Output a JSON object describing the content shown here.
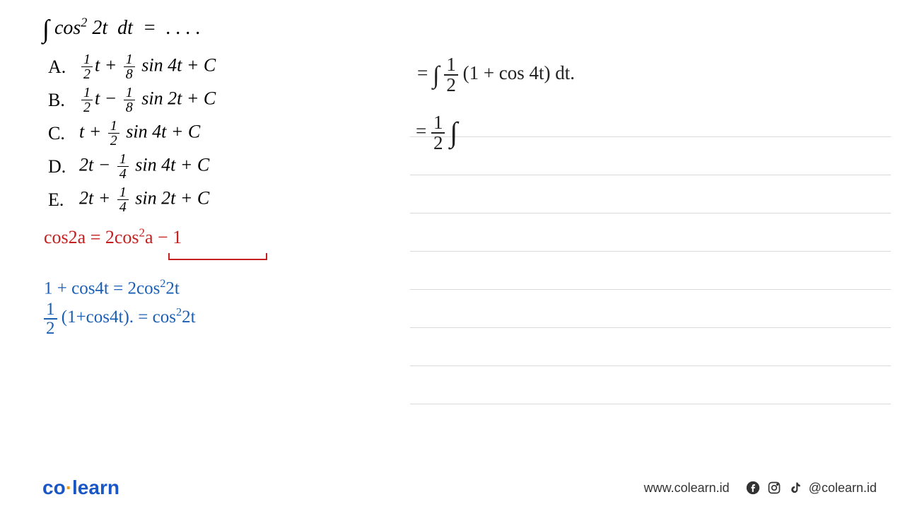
{
  "question": {
    "prefix_integral": "∫",
    "body_html": "cos<span class='sup'>2</span> 2<i>t</i> &nbsp;<i>dt</i> &nbsp;= &nbsp;. . . ."
  },
  "options": {
    "A": {
      "letter": "A.",
      "frac1_num": "1",
      "frac1_den": "2",
      "mid": "<i>t</i> + ",
      "frac2_num": "1",
      "frac2_den": "8",
      "tail": " sin 4<i>t</i> + <i>C</i>"
    },
    "B": {
      "letter": "B.",
      "frac1_num": "1",
      "frac1_den": "2",
      "mid": "<i>t</i> − ",
      "frac2_num": "1",
      "frac2_den": "8",
      "tail": " sin 2<i>t</i> + <i>C</i>"
    },
    "C": {
      "letter": "C.",
      "pre": "<i>t</i> + ",
      "frac_num": "1",
      "frac_den": "2",
      "tail": " sin 4<i>t</i> + <i>C</i>"
    },
    "D": {
      "letter": "D.",
      "pre": "2<i>t</i> − ",
      "frac_num": "1",
      "frac_den": "4",
      "tail": " sin 4<i>t</i> + <i>C</i>"
    },
    "E": {
      "letter": "E.",
      "pre": "2<i>t</i> + ",
      "frac_num": "1",
      "frac_den": "4",
      "tail": " sin 2<i>t</i> + <i>C</i>"
    }
  },
  "hw_red": {
    "line": "cos2a = 2cos<span class='sup'>2</span>a − 1"
  },
  "hw_blue": {
    "line1": "1 + cos4t = 2cos<span class='sup'>2</span>2t",
    "line2_pre": "",
    "line2_frac_n": "1",
    "line2_frac_d": "2",
    "line2_post": "(1+cos4t). = cos<span class='sup'>2</span>2t"
  },
  "hw_black": {
    "line1_pre": "= ",
    "line1_int": "∫",
    "line1_frac_n": "1",
    "line1_frac_d": "2",
    "line1_post": "(1 + cos 4t) dt.",
    "line2_pre": "= ",
    "line2_frac_n": "1",
    "line2_frac_d": "2",
    "line2_int": "∫"
  },
  "footer": {
    "logo_co": "co",
    "logo_dot": "·",
    "logo_learn": "learn",
    "url": "www.colearn.id",
    "handle": "@colearn.id"
  },
  "colors": {
    "red": "#c42020",
    "blue": "#1a5fb4",
    "brand": "#1a57c4",
    "accent": "#f39c12",
    "rule": "#d9d9d9",
    "text": "#000000",
    "social": "#333333",
    "bg": "#ffffff"
  }
}
